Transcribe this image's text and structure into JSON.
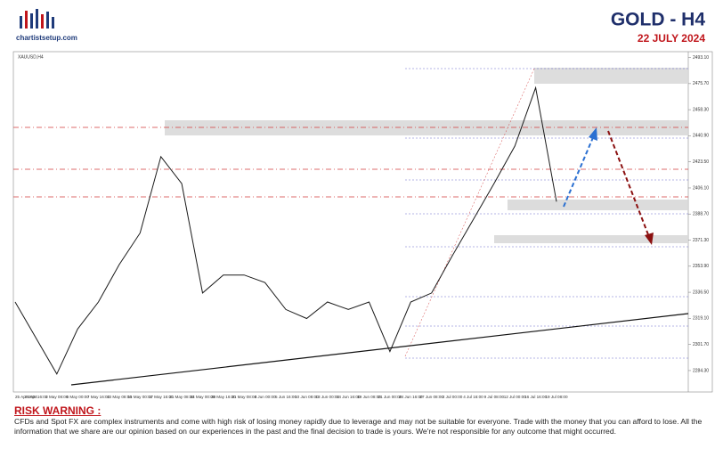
{
  "header": {
    "logo_text": "chartistsetup.com",
    "title": "GOLD  -  H4",
    "date": "22 JULY 2024"
  },
  "chart_data": {
    "type": "line",
    "symbol_label": "XAUUSD,H4",
    "x": [
      "25 Apr 2024",
      "29 Apr 16:00",
      "2 May 08:00",
      "6 May 00:00",
      "7 May 16:00",
      "13 May 08:00",
      "15 May 00:00",
      "17 May 16:00",
      "21 May 08:00",
      "24 May 00:00",
      "28 May 16:00",
      "31 May 08:00",
      "4 Jun 00:00",
      "5 Jun 16:00",
      "10 Jun 08:00",
      "13 Jun 00:00",
      "14 Jun 16:00",
      "19 Jun 08:00",
      "21 Jun 00:00",
      "24 Jun 16:00",
      "27 Jun 08:00",
      "2 Jul 00:00",
      "4 Jul 16:00",
      "9 Jul 08:00",
      "12 Jul 00:00",
      "16 Jul 16:00",
      "19 Jul 08:00"
    ],
    "series": [
      {
        "name": "XAUUSD",
        "color": "#1a1a1a",
        "values": [
          2330,
          2306,
          2282,
          2312,
          2330,
          2355,
          2376,
          2427,
          2409,
          2336,
          2348,
          2348,
          2343,
          2325,
          2319,
          2330,
          2325,
          2330,
          2297,
          2330,
          2336,
          2361,
          2385,
          2409,
          2434,
          2473,
          2397
        ]
      }
    ],
    "ylim": [
      2270,
      2497
    ],
    "yticks": [
      {
        "value": 2493.1,
        "label": "2493.10"
      },
      {
        "value": 2475.7,
        "label": "2475.70"
      },
      {
        "value": 2458.3,
        "label": "2458.30"
      },
      {
        "value": 2440.9,
        "label": "2440.90"
      },
      {
        "value": 2423.5,
        "label": "2423.50"
      },
      {
        "value": 2406.1,
        "label": "2406.10"
      },
      {
        "value": 2388.7,
        "label": "2388.70"
      },
      {
        "value": 2371.3,
        "label": "2371.30"
      },
      {
        "value": 2353.9,
        "label": "2353.90"
      },
      {
        "value": 2336.5,
        "label": "2336.50"
      },
      {
        "value": 2319.1,
        "label": "2319.10"
      },
      {
        "value": 2301.7,
        "label": "2301.70"
      },
      {
        "value": 2284.3,
        "label": "2284.30"
      }
    ]
  },
  "risk_warning": {
    "heading": "RISK WARNING :",
    "text": "CFDs and Spot FX are complex instruments and come with high risk of losing money rapidly due to leverage and may not be suitable for everyone. Trade with the money that you can afford to lose. All the information that we share are our opinion based on our experiences in the past and the final decision to trade is yours. We're not responsible for any outcome that might occurred."
  }
}
